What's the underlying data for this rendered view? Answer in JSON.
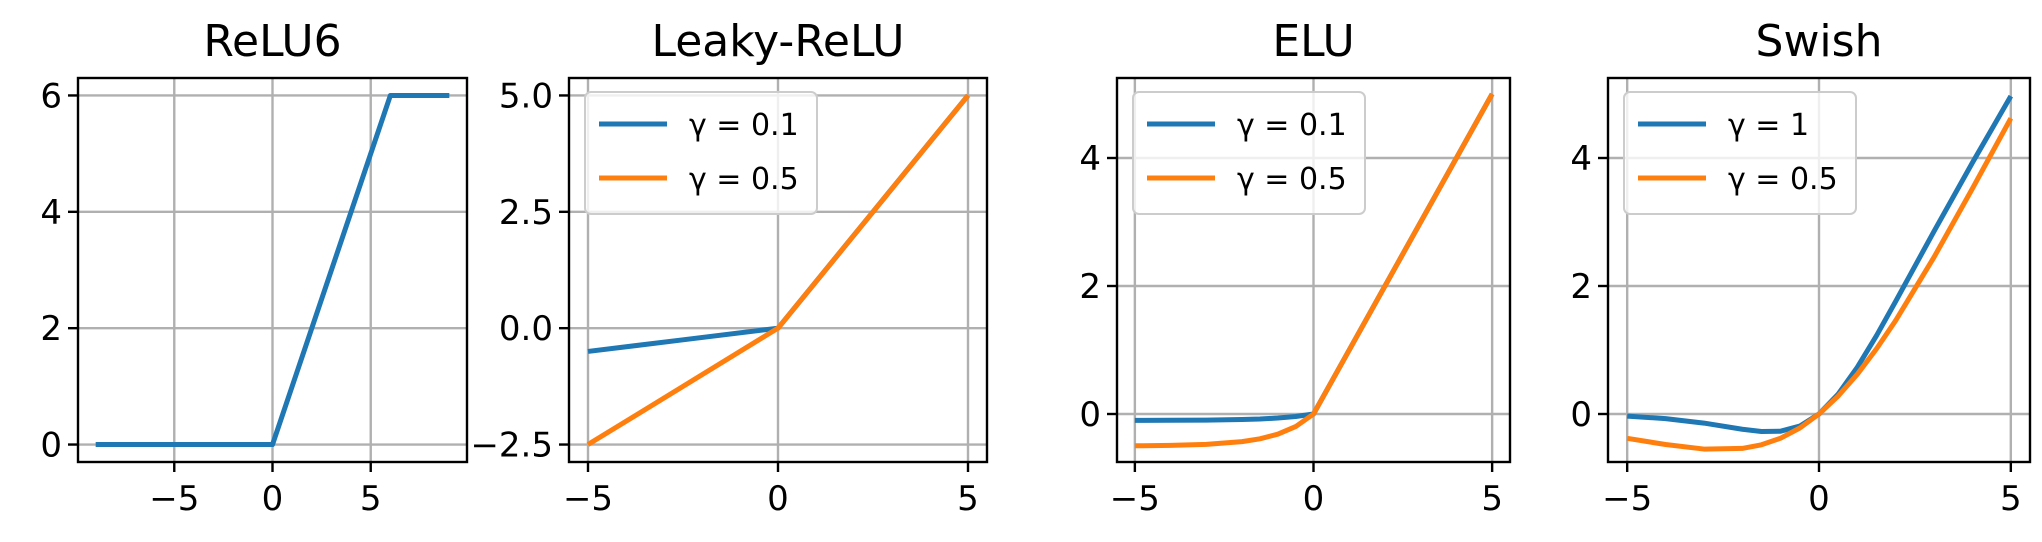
{
  "colors": {
    "blue": "#1f77b4",
    "orange": "#ff7f0e",
    "grid": "#b0b0b0"
  },
  "chart_data": [
    {
      "type": "line",
      "title": "ReLU6",
      "xlim": [
        -9.9,
        9.9
      ],
      "ylim": [
        -0.3,
        6.3
      ],
      "xticks": [
        -5,
        0,
        5
      ],
      "xtick_labels": [
        "−5",
        "0",
        "5"
      ],
      "yticks": [
        0,
        2,
        4,
        6
      ],
      "ytick_labels": [
        "0",
        "2",
        "4",
        "6"
      ],
      "grid": true,
      "legend": null,
      "series": [
        {
          "color": "#1f77b4",
          "x": [
            -9,
            -5,
            0,
            2,
            4,
            6,
            9
          ],
          "y": [
            0,
            0,
            0,
            2,
            4,
            6,
            6
          ]
        }
      ]
    },
    {
      "type": "line",
      "title": "Leaky-ReLU",
      "xlim": [
        -5.5,
        5.5
      ],
      "ylim": [
        -2.875,
        5.375
      ],
      "xticks": [
        -5,
        0,
        5
      ],
      "xtick_labels": [
        "−5",
        "0",
        "5"
      ],
      "yticks": [
        -2.5,
        0,
        2.5,
        5
      ],
      "ytick_labels": [
        "−2.5",
        "0.0",
        "2.5",
        "5.0"
      ],
      "grid": true,
      "legend": "top-left",
      "series": [
        {
          "name": "γ = 0.1",
          "color": "#1f77b4",
          "x": [
            -5,
            -2.5,
            0,
            2.5,
            5
          ],
          "y": [
            -0.5,
            -0.25,
            0,
            2.5,
            5
          ]
        },
        {
          "name": "γ = 0.5",
          "color": "#ff7f0e",
          "x": [
            -5,
            -2.5,
            0,
            2.5,
            5
          ],
          "y": [
            -2.5,
            -1.25,
            0,
            2.5,
            5
          ]
        }
      ]
    },
    {
      "type": "line",
      "title": "ELU",
      "xlim": [
        -5.5,
        5.5
      ],
      "ylim": [
        -0.75,
        5.25
      ],
      "xticks": [
        -5,
        0,
        5
      ],
      "xtick_labels": [
        "−5",
        "0",
        "5"
      ],
      "yticks": [
        0,
        2,
        4
      ],
      "ytick_labels": [
        "0",
        "2",
        "4"
      ],
      "grid": true,
      "legend": "top-left",
      "series": [
        {
          "name": "γ = 0.1",
          "color": "#1f77b4",
          "x": [
            -5,
            -4,
            -3,
            -2,
            -1.5,
            -1,
            -0.5,
            0,
            2.5,
            5
          ],
          "y": [
            -0.099,
            -0.098,
            -0.095,
            -0.086,
            -0.078,
            -0.063,
            -0.039,
            0,
            2.5,
            5
          ]
        },
        {
          "name": "γ = 0.5",
          "color": "#ff7f0e",
          "x": [
            -5,
            -4,
            -3,
            -2,
            -1.5,
            -1,
            -0.5,
            0,
            2.5,
            5
          ],
          "y": [
            -0.497,
            -0.491,
            -0.475,
            -0.432,
            -0.388,
            -0.316,
            -0.197,
            0,
            2.5,
            5
          ]
        }
      ]
    },
    {
      "type": "line",
      "title": "Swish",
      "xlim": [
        -5.5,
        5.5
      ],
      "ylim": [
        -0.75,
        5.25
      ],
      "xticks": [
        -5,
        0,
        5
      ],
      "xtick_labels": [
        "−5",
        "0",
        "5"
      ],
      "yticks": [
        0,
        2,
        4
      ],
      "ytick_labels": [
        "0",
        "2",
        "4"
      ],
      "grid": true,
      "legend": "top-left",
      "series": [
        {
          "name": "γ = 1",
          "color": "#1f77b4",
          "x": [
            -5,
            -4,
            -3,
            -2,
            -1.5,
            -1,
            -0.5,
            0,
            0.5,
            1,
            1.5,
            2,
            3,
            4,
            5
          ],
          "y": [
            -0.033,
            -0.072,
            -0.142,
            -0.238,
            -0.274,
            -0.269,
            -0.189,
            0,
            0.311,
            0.731,
            1.226,
            1.762,
            2.857,
            3.928,
            4.966
          ]
        },
        {
          "name": "γ = 0.5",
          "color": "#ff7f0e",
          "x": [
            -5,
            -4,
            -3,
            -2,
            -1.5,
            -1,
            -0.5,
            0,
            0.5,
            1,
            1.5,
            2,
            3,
            4,
            5
          ],
          "y": [
            -0.38,
            -0.477,
            -0.548,
            -0.538,
            -0.481,
            -0.378,
            -0.219,
            0,
            0.281,
            0.622,
            1.019,
            1.462,
            2.452,
            3.523,
            4.62
          ]
        }
      ]
    }
  ]
}
